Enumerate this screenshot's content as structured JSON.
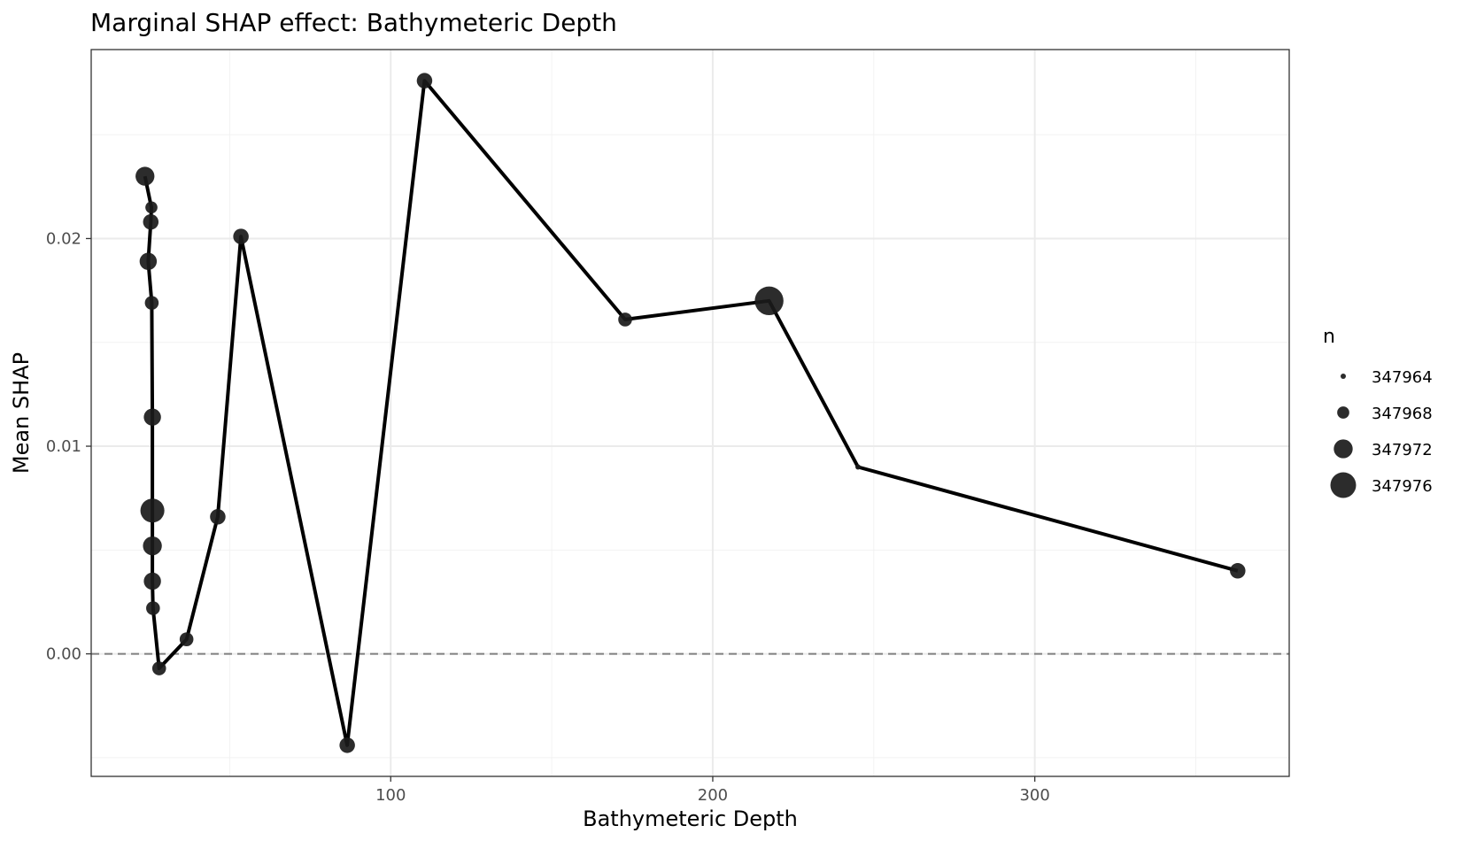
{
  "chart_data": {
    "type": "line",
    "title": "Marginal SHAP effect: Bathymeteric Depth",
    "xlabel": "Bathymeteric Depth",
    "ylabel": "Mean SHAP",
    "xlim": [
      7,
      379
    ],
    "ylim": [
      -0.0059,
      0.0291
    ],
    "x_ticks": [
      100,
      200,
      300
    ],
    "x_tick_labels": [
      "100",
      "200",
      "300"
    ],
    "x_minor_ticks": [
      50,
      150,
      250,
      350
    ],
    "y_ticks": [
      0.0,
      0.01,
      0.02
    ],
    "y_tick_labels": [
      "0.00",
      "0.01",
      "0.02"
    ],
    "y_minor_ticks": [
      -0.005,
      0.005,
      0.015,
      0.025
    ],
    "grid": true,
    "reference_line": {
      "y": 0.0,
      "style": "dashed",
      "color": "#808080"
    },
    "line_color": "#000000",
    "point_color": "#1a1a1a",
    "legend": {
      "title": "n",
      "position": "right",
      "entries": [
        {
          "label": "347964",
          "n": 347964
        },
        {
          "label": "347968",
          "n": 347968
        },
        {
          "label": "347972",
          "n": 347972
        },
        {
          "label": "347976",
          "n": 347976
        }
      ]
    },
    "points": [
      {
        "x": 23.7,
        "y": 0.023,
        "n": 347972
      },
      {
        "x": 25.7,
        "y": 0.0215,
        "n": 347968
      },
      {
        "x": 25.5,
        "y": 0.0208,
        "n": 347970
      },
      {
        "x": 24.7,
        "y": 0.0189,
        "n": 347971
      },
      {
        "x": 25.8,
        "y": 0.0169,
        "n": 347969
      },
      {
        "x": 26.0,
        "y": 0.0114,
        "n": 347971
      },
      {
        "x": 26.0,
        "y": 0.0069,
        "n": 347975
      },
      {
        "x": 26.0,
        "y": 0.0052,
        "n": 347972
      },
      {
        "x": 26.0,
        "y": 0.0035,
        "n": 347971
      },
      {
        "x": 26.2,
        "y": 0.0022,
        "n": 347969
      },
      {
        "x": 28.1,
        "y": -0.0007,
        "n": 347969
      },
      {
        "x": 36.6,
        "y": 0.0007,
        "n": 347969
      },
      {
        "x": 46.3,
        "y": 0.0066,
        "n": 347970
      },
      {
        "x": 53.5,
        "y": 0.0201,
        "n": 347970
      },
      {
        "x": 86.5,
        "y": -0.0044,
        "n": 347970
      },
      {
        "x": 110.5,
        "y": 0.0276,
        "n": 347970
      },
      {
        "x": 172.8,
        "y": 0.0161,
        "n": 347969
      },
      {
        "x": 217.5,
        "y": 0.017,
        "n": 347978
      },
      {
        "x": 245.1,
        "y": 0.009,
        "n": 347964
      },
      {
        "x": 363.0,
        "y": 0.004,
        "n": 347970
      }
    ]
  }
}
